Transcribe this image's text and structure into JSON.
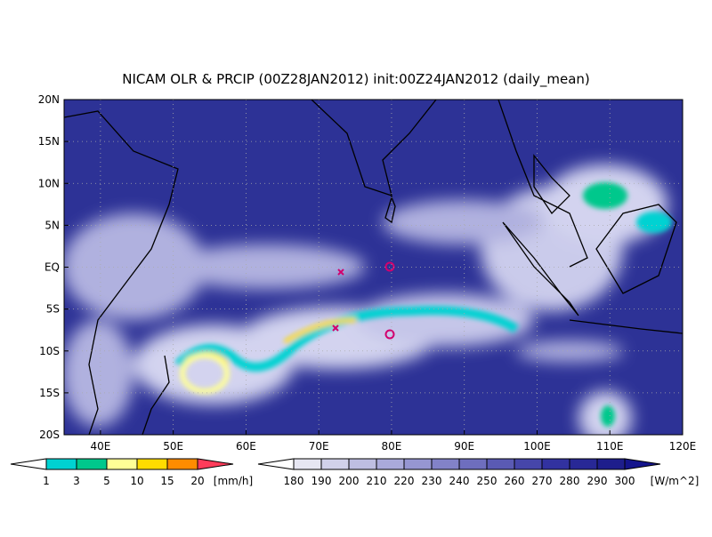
{
  "title": "NICAM OLR & PRCIP (00Z28JAN2012) init:00Z24JAN2012 (daily_mean)",
  "lat_labels": [
    "20N",
    "15N",
    "10N",
    "5N",
    "EQ",
    "5S",
    "10S",
    "15S",
    "20S"
  ],
  "lon_labels": [
    "40E",
    "50E",
    "60E",
    "70E",
    "80E",
    "90E",
    "100E",
    "110E",
    "120E"
  ],
  "precip_colorbar": {
    "labels": [
      "1",
      "3",
      "5",
      "10",
      "15",
      "20"
    ],
    "unit": "[mm/h]",
    "colors": [
      "#ffffff",
      "#00d2d2",
      "#00c88c",
      "#ffff96",
      "#ffdc00",
      "#ff8c00",
      "#ff3c5a"
    ]
  },
  "olr_colorbar": {
    "labels": [
      "180",
      "190",
      "200",
      "210",
      "220",
      "230",
      "240",
      "250",
      "260",
      "270",
      "280",
      "290",
      "300"
    ],
    "unit": "[W/m^2]",
    "colors": [
      "#ffffff",
      "#e6e6f2",
      "#d2d2ea",
      "#bebee2",
      "#aaaadb",
      "#9696d2",
      "#8282c8",
      "#6e6ebe",
      "#5a5ab4",
      "#4646aa",
      "#3232a0",
      "#282896",
      "#1e1e8c",
      "#14148c"
    ]
  }
}
